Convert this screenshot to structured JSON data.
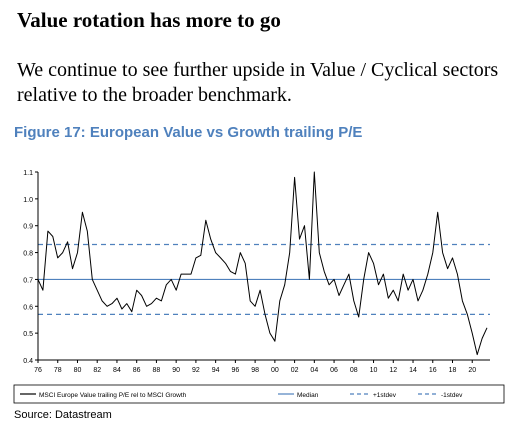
{
  "heading": "Value rotation has more to go",
  "subtext": "We continue to see further upside in Value / Cyclical sectors relative to the broader benchmark.",
  "figure_title": "Figure 17: European Value vs Growth trailing P/E",
  "source": "Source: Datastream",
  "colors": {
    "series": "#000000",
    "median": "#4f81bd",
    "band": "#4f81bd",
    "title": "#4f81bd"
  },
  "chart_data": {
    "type": "line",
    "title": "Figure 17: European Value vs Growth trailing P/E",
    "xlabel": "",
    "ylabel": "",
    "xlim": [
      1976,
      2021.8
    ],
    "ylim": [
      0.4,
      1.1
    ],
    "x_ticks": [
      "76",
      "78",
      "80",
      "82",
      "84",
      "86",
      "88",
      "90",
      "92",
      "94",
      "96",
      "98",
      "00",
      "02",
      "04",
      "06",
      "08",
      "10",
      "12",
      "14",
      "16",
      "18",
      "20"
    ],
    "y_ticks": [
      "1.1",
      "1.0",
      "0.9",
      "0.8",
      "0.7",
      "0.6",
      "0.5",
      "0.4"
    ],
    "grid": false,
    "legend_position": "bottom",
    "series": [
      {
        "name": "MSCI Europe Value trailing P/E rel to MSCI Growth",
        "style": "solid",
        "x": [
          1976.0,
          1976.5,
          1977.0,
          1977.5,
          1978.0,
          1978.5,
          1979.0,
          1979.5,
          1980.0,
          1980.5,
          1981.0,
          1981.5,
          1982.0,
          1982.5,
          1983.0,
          1983.5,
          1984.0,
          1984.5,
          1985.0,
          1985.5,
          1986.0,
          1986.5,
          1987.0,
          1987.5,
          1988.0,
          1988.5,
          1989.0,
          1989.5,
          1990.0,
          1990.5,
          1991.0,
          1991.5,
          1992.0,
          1992.5,
          1993.0,
          1993.5,
          1994.0,
          1994.5,
          1995.0,
          1995.5,
          1996.0,
          1996.5,
          1997.0,
          1997.5,
          1998.0,
          1998.5,
          1999.0,
          1999.5,
          2000.0,
          2000.5,
          2001.0,
          2001.5,
          2002.0,
          2002.5,
          2003.0,
          2003.5,
          2004.0,
          2004.5,
          2005.0,
          2005.5,
          2006.0,
          2006.5,
          2007.0,
          2007.5,
          2008.0,
          2008.5,
          2009.0,
          2009.5,
          2010.0,
          2010.5,
          2011.0,
          2011.5,
          2012.0,
          2012.5,
          2013.0,
          2013.5,
          2014.0,
          2014.5,
          2015.0,
          2015.5,
          2016.0,
          2016.5,
          2017.0,
          2017.5,
          2018.0,
          2018.5,
          2019.0,
          2019.5,
          2020.0,
          2020.5,
          2021.0,
          2021.5
        ],
        "values": [
          0.7,
          0.66,
          0.88,
          0.86,
          0.78,
          0.8,
          0.84,
          0.74,
          0.8,
          0.95,
          0.88,
          0.7,
          0.66,
          0.62,
          0.6,
          0.61,
          0.63,
          0.59,
          0.61,
          0.58,
          0.66,
          0.64,
          0.6,
          0.61,
          0.63,
          0.62,
          0.68,
          0.7,
          0.66,
          0.72,
          0.72,
          0.72,
          0.78,
          0.79,
          0.92,
          0.85,
          0.8,
          0.78,
          0.76,
          0.73,
          0.72,
          0.8,
          0.76,
          0.62,
          0.6,
          0.66,
          0.57,
          0.5,
          0.47,
          0.62,
          0.68,
          0.8,
          1.08,
          0.85,
          0.9,
          0.7,
          1.1,
          0.8,
          0.73,
          0.68,
          0.7,
          0.64,
          0.68,
          0.72,
          0.62,
          0.56,
          0.7,
          0.8,
          0.76,
          0.68,
          0.72,
          0.63,
          0.66,
          0.62,
          0.72,
          0.66,
          0.7,
          0.62,
          0.66,
          0.72,
          0.8,
          0.95,
          0.8,
          0.74,
          0.78,
          0.72,
          0.62,
          0.57,
          0.5,
          0.42,
          0.48,
          0.52
        ]
      },
      {
        "name": "Median",
        "style": "solid",
        "value": 0.7
      },
      {
        "name": "+1stdev",
        "style": "dashed",
        "value": 0.83
      },
      {
        "name": "-1stdev",
        "style": "dashed",
        "value": 0.57
      }
    ]
  }
}
